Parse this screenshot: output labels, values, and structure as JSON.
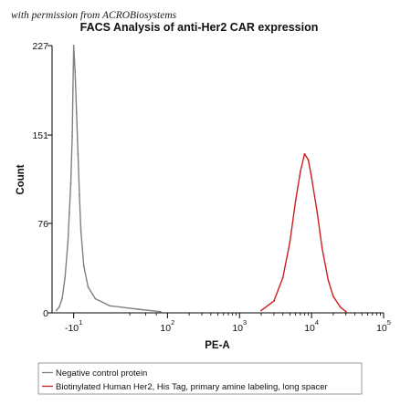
{
  "watermark": "with permission from ACROBiosystems",
  "colors": {
    "negative": "#808080",
    "sample": "#cc1f1f",
    "axis": "#000000"
  },
  "chart_data": {
    "type": "line",
    "title": "FACS Analysis of anti-Her2 CAR expression",
    "xlabel": "PE-A",
    "ylabel": "Count",
    "x_scale": "biexponential",
    "xlim": [
      -25,
      100000
    ],
    "ylim": [
      0,
      227
    ],
    "y_ticks": [
      0,
      76,
      151,
      227
    ],
    "x_ticks": [
      {
        "value": -10,
        "base": "-10",
        "exp": "1"
      },
      {
        "value": 100,
        "base": "10",
        "exp": "2"
      },
      {
        "value": 1000,
        "base": "10",
        "exp": "3"
      },
      {
        "value": 10000,
        "base": "10",
        "exp": "4"
      },
      {
        "value": 100000,
        "base": "10",
        "exp": "5"
      }
    ],
    "grid": false,
    "legend_position": "bottom",
    "series": [
      {
        "name": "Negative control protein",
        "color": "#808080",
        "x": [
          -22,
          -20,
          -18,
          -16,
          -14,
          -13,
          -12,
          -11,
          -10.5,
          -10,
          -9,
          -8,
          -7,
          -6,
          -5,
          -3,
          0,
          5,
          15,
          40,
          80
        ],
        "y": [
          2,
          5,
          12,
          30,
          60,
          85,
          110,
          150,
          190,
          227,
          205,
          170,
          135,
          100,
          70,
          40,
          22,
          12,
          6,
          3,
          1
        ]
      },
      {
        "name": "Biotinylated Human Her2, His Tag, primary amine labeling, long spacer",
        "color": "#cc1f1f",
        "x": [
          2000,
          3000,
          4000,
          5000,
          6000,
          7000,
          8000,
          9000,
          10000,
          12000,
          14000,
          17000,
          20000,
          25000,
          30000
        ],
        "y": [
          2,
          10,
          30,
          60,
          95,
          120,
          135,
          130,
          115,
          85,
          55,
          28,
          14,
          5,
          1
        ]
      }
    ]
  }
}
